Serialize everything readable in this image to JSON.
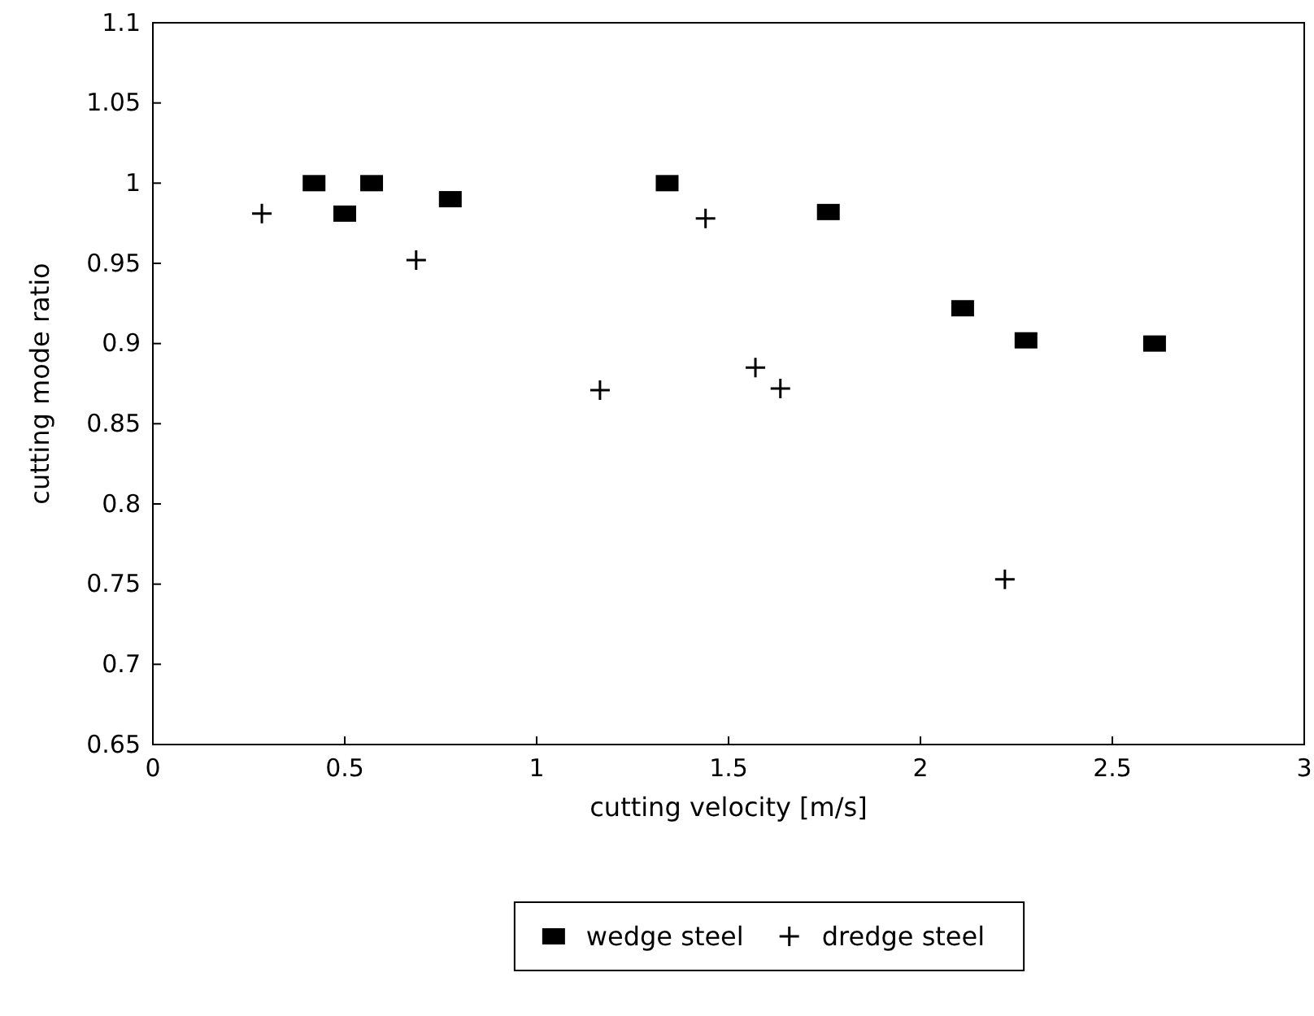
{
  "chart_data": {
    "type": "scatter",
    "xlabel": "cutting velocity [m/s]",
    "ylabel": "cutting mode ratio",
    "xlim": [
      0,
      3
    ],
    "xticks": [
      0,
      0.5,
      1,
      1.5,
      2,
      2.5,
      3
    ],
    "ylim": [
      0.65,
      1.1
    ],
    "yticks": [
      0.65,
      0.7,
      0.75,
      0.8,
      0.85,
      0.9,
      0.95,
      1,
      1.05,
      1.1
    ],
    "grid": false,
    "legend": "bottom",
    "series": [
      {
        "name": "wedge steel",
        "color": "#000000",
        "marker": "square",
        "x": [
          0.42,
          0.5,
          0.57,
          0.775,
          1.34,
          1.76,
          2.11,
          2.275,
          2.61
        ],
        "values": [
          1.0,
          0.981,
          1.0,
          0.99,
          1.0,
          0.982,
          0.922,
          0.902,
          0.9
        ]
      },
      {
        "name": "dredge steel",
        "color": "#000000",
        "marker": "cross",
        "x": [
          0.284,
          0.686,
          1.165,
          1.44,
          1.57,
          1.635,
          2.22
        ],
        "values": [
          0.981,
          0.952,
          0.871,
          0.978,
          0.885,
          0.872,
          0.753
        ]
      }
    ]
  }
}
